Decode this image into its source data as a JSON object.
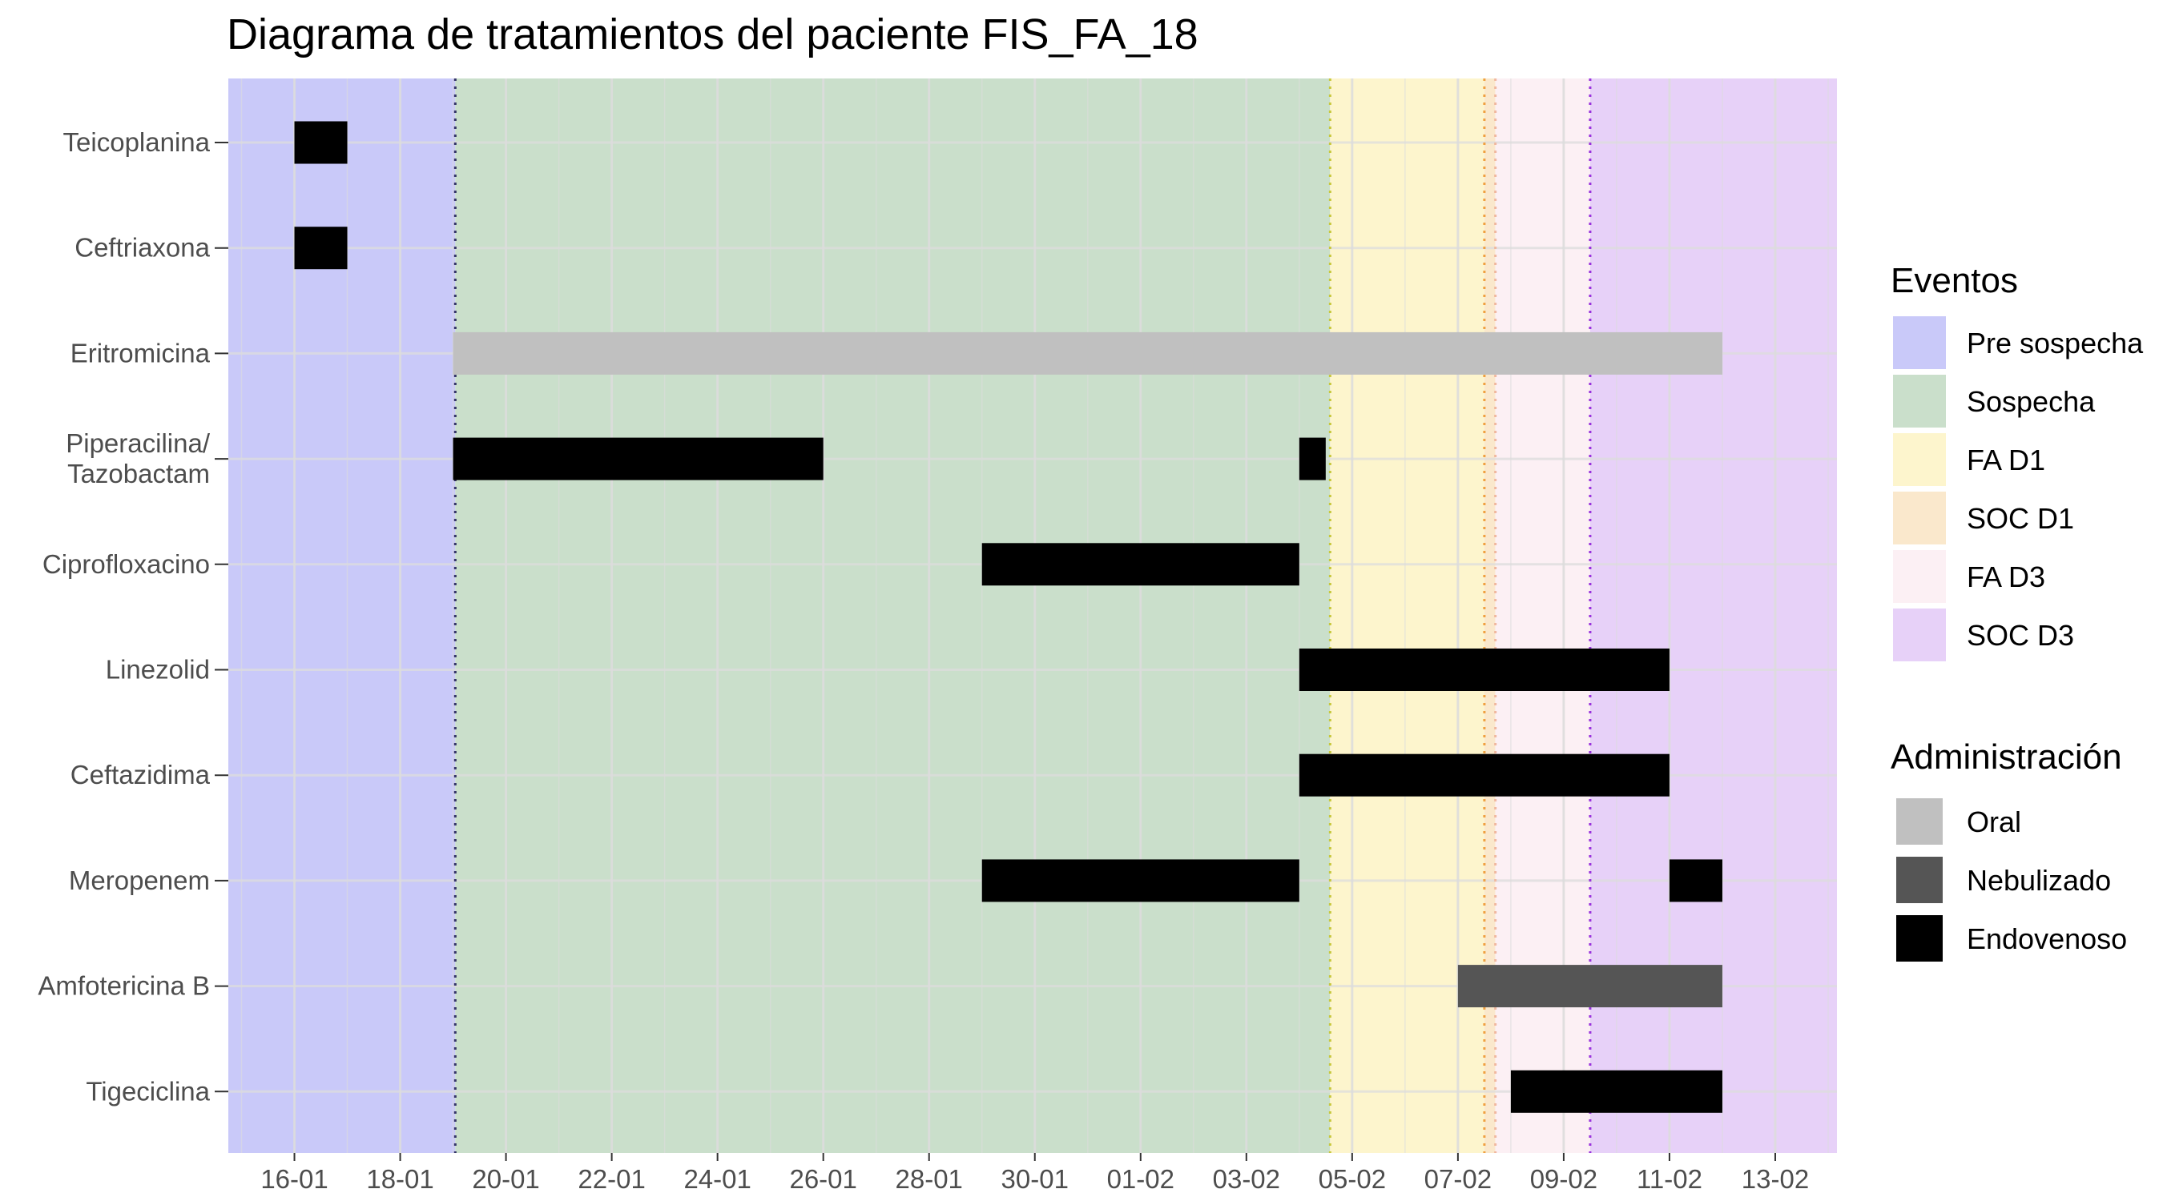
{
  "title": "Diagrama de tratamientos del paciente FIS_FA_18",
  "colors": {
    "background": "#ffffff",
    "grid": "#dcdcdc",
    "tick_text": "#4d4d4d",
    "Pre sospecha": "#c9c9f9",
    "Sospecha": "#cadfcb",
    "FA D1": "#fdf5cd",
    "SOC D1": "#fae8cc",
    "FA D3": "#fcf0f4",
    "SOC D3": "#e7d1f8",
    "Oral": "#c0c0c0",
    "Nebulizado": "#555555",
    "Endovenoso": "#000000"
  },
  "legend": {
    "eventos_title": "Eventos",
    "eventos_items": [
      {
        "label": "Pre sospecha",
        "color_key": "Pre sospecha"
      },
      {
        "label": "Sospecha",
        "color_key": "Sospecha"
      },
      {
        "label": "FA D1",
        "color_key": "FA D1"
      },
      {
        "label": "SOC D1",
        "color_key": "SOC D1"
      },
      {
        "label": "FA D3",
        "color_key": "FA D3"
      },
      {
        "label": "SOC D3",
        "color_key": "SOC D3"
      }
    ],
    "administracion_title": "Administración",
    "administracion_items": [
      {
        "label": "Oral",
        "color_key": "Oral"
      },
      {
        "label": "Nebulizado",
        "color_key": "Nebulizado"
      },
      {
        "label": "Endovenoso",
        "color_key": "Endovenoso"
      }
    ]
  },
  "chart_data": {
    "type": "gantt",
    "title": "Diagrama de tratamientos del paciente FIS_FA_18",
    "x_type": "date",
    "xlim": [
      "2000-01-14T18:00",
      "2000-02-14T04:00"
    ],
    "x_ticks": [
      {
        "date": "2000-01-16",
        "label": "16-01"
      },
      {
        "date": "2000-01-18",
        "label": "18-01"
      },
      {
        "date": "2000-01-20",
        "label": "20-01"
      },
      {
        "date": "2000-01-22",
        "label": "22-01"
      },
      {
        "date": "2000-01-24",
        "label": "24-01"
      },
      {
        "date": "2000-01-26",
        "label": "26-01"
      },
      {
        "date": "2000-01-28",
        "label": "28-01"
      },
      {
        "date": "2000-01-30",
        "label": "30-01"
      },
      {
        "date": "2000-02-01",
        "label": "01-02"
      },
      {
        "date": "2000-02-03",
        "label": "03-02"
      },
      {
        "date": "2000-02-05",
        "label": "05-02"
      },
      {
        "date": "2000-02-07",
        "label": "07-02"
      },
      {
        "date": "2000-02-09",
        "label": "09-02"
      },
      {
        "date": "2000-02-11",
        "label": "11-02"
      },
      {
        "date": "2000-02-13",
        "label": "13-02"
      }
    ],
    "categories": [
      "Teicoplanina",
      "Ceftriaxona",
      "Eritromicina",
      "Piperacilina/\nTazobactam",
      "Ciprofloxacino",
      "Linezolid",
      "Ceftazidima",
      "Meropenem",
      "Amfotericina B",
      "Tigeciclina"
    ],
    "periods": [
      {
        "event": "Pre sospecha",
        "start": "2000-01-14T18:00",
        "end": "2000-01-19T01:00"
      },
      {
        "event": "Sospecha",
        "start": "2000-01-19T01:00",
        "end": "2000-02-04T14:00"
      },
      {
        "event": "FA D1",
        "start": "2000-02-04T14:00",
        "end": "2000-02-07T12:00"
      },
      {
        "event": "SOC D1",
        "start": "2000-02-07T12:00",
        "end": "2000-02-07T17:00"
      },
      {
        "event": "FA D3",
        "start": "2000-02-07T17:00",
        "end": "2000-02-09T12:00"
      },
      {
        "event": "SOC D3",
        "start": "2000-02-09T12:00",
        "end": "2000-02-14T04:00"
      }
    ],
    "event_lines": [
      {
        "event": "Sospecha",
        "date": "2000-01-19T01:00",
        "color": "#333366"
      },
      {
        "event": "FA D1",
        "date": "2000-02-04T14:00",
        "color": "#c8c83c"
      },
      {
        "event": "SOC D1",
        "date": "2000-02-07T12:00",
        "color": "#f0a040"
      },
      {
        "event": "FA D3",
        "date": "2000-02-07T17:00",
        "color": "#f0b8a0"
      },
      {
        "event": "SOC D3",
        "date": "2000-02-09T12:00",
        "color": "#9933dd"
      }
    ],
    "bars": [
      {
        "drug": "Teicoplanina",
        "route": "Endovenoso",
        "start": "2000-01-16",
        "end": "2000-01-17"
      },
      {
        "drug": "Ceftriaxona",
        "route": "Endovenoso",
        "start": "2000-01-16",
        "end": "2000-01-17"
      },
      {
        "drug": "Eritromicina",
        "route": "Oral",
        "start": "2000-01-19",
        "end": "2000-02-12"
      },
      {
        "drug": "Piperacilina/\nTazobactam",
        "route": "Endovenoso",
        "start": "2000-01-19",
        "end": "2000-01-26"
      },
      {
        "drug": "Piperacilina/\nTazobactam",
        "route": "Endovenoso",
        "start": "2000-02-04",
        "end": "2000-02-04T12:00"
      },
      {
        "drug": "Ciprofloxacino",
        "route": "Endovenoso",
        "start": "2000-01-29",
        "end": "2000-02-04"
      },
      {
        "drug": "Linezolid",
        "route": "Endovenoso",
        "start": "2000-02-04",
        "end": "2000-02-11"
      },
      {
        "drug": "Ceftazidima",
        "route": "Endovenoso",
        "start": "2000-02-04",
        "end": "2000-02-11"
      },
      {
        "drug": "Meropenem",
        "route": "Endovenoso",
        "start": "2000-01-29",
        "end": "2000-02-04"
      },
      {
        "drug": "Meropenem",
        "route": "Endovenoso",
        "start": "2000-02-11",
        "end": "2000-02-12"
      },
      {
        "drug": "Amfotericina B",
        "route": "Nebulizado",
        "start": "2000-02-07",
        "end": "2000-02-12"
      },
      {
        "drug": "Tigeciclina",
        "route": "Endovenoso",
        "start": "2000-02-08",
        "end": "2000-02-12"
      }
    ]
  }
}
